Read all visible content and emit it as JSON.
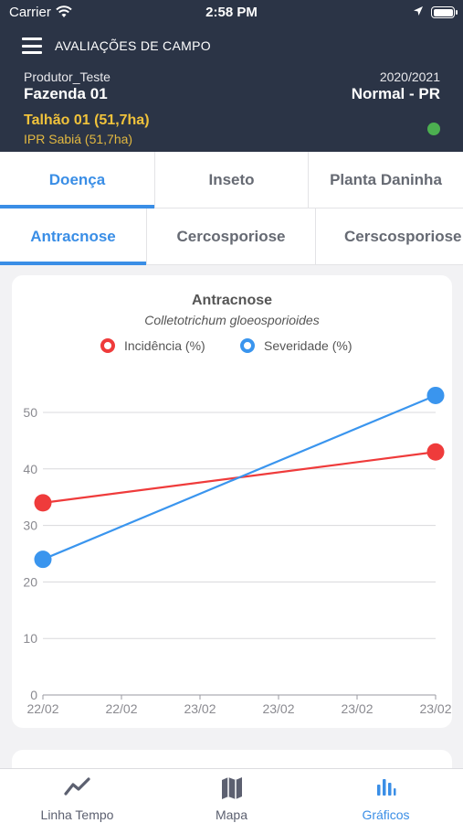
{
  "status_bar": {
    "carrier": "Carrier",
    "time": "2:58 PM"
  },
  "header": {
    "title": "AVALIAÇÕES DE CAMPO",
    "producer": "Produtor_Teste",
    "farm": "Fazenda 01",
    "season": "2020/2021",
    "region": "Normal - PR",
    "field": "Talhão 01 (51,7ha)",
    "cultivar": "IPR Sabiá (51,7ha)",
    "status_color": "#4caf50"
  },
  "category_tabs": [
    {
      "label": "Doença",
      "active": true
    },
    {
      "label": "Inseto",
      "active": false
    },
    {
      "label": "Planta Daninha",
      "active": false
    }
  ],
  "disease_tabs": [
    {
      "label": "Antracnose",
      "active": true
    },
    {
      "label": "Cercosporiose",
      "active": false
    },
    {
      "label": "Cerscosporiose",
      "active": false
    }
  ],
  "chart": {
    "title": "Antracnose",
    "subtitle": "Colletotrichum gloeosporioides",
    "legend": [
      {
        "label": "Incidência (%)",
        "color": "#ef3b3b"
      },
      {
        "label": "Severidade (%)",
        "color": "#3a95ee"
      }
    ]
  },
  "chart_data": {
    "type": "line",
    "x_tick_labels": [
      "22/02",
      "22/02",
      "23/02",
      "23/02",
      "23/02",
      "23/02"
    ],
    "y_ticks": [
      0,
      10,
      20,
      30,
      40,
      50
    ],
    "ylim": [
      0,
      55
    ],
    "grid": true,
    "legend_position": "top-center",
    "series": [
      {
        "name": "Incidência (%)",
        "color": "#ef3b3b",
        "x": [
          "22/02",
          "23/02"
        ],
        "values": [
          34,
          43
        ]
      },
      {
        "name": "Severidade (%)",
        "color": "#3a95ee",
        "x": [
          "22/02",
          "23/02"
        ],
        "values": [
          24,
          53
        ]
      }
    ]
  },
  "bottom_tabs": [
    {
      "label": "Linha Tempo",
      "icon": "line-chart-icon",
      "active": false
    },
    {
      "label": "Mapa",
      "icon": "map-icon",
      "active": false
    },
    {
      "label": "Gráficos",
      "icon": "bar-chart-icon",
      "active": true
    }
  ]
}
